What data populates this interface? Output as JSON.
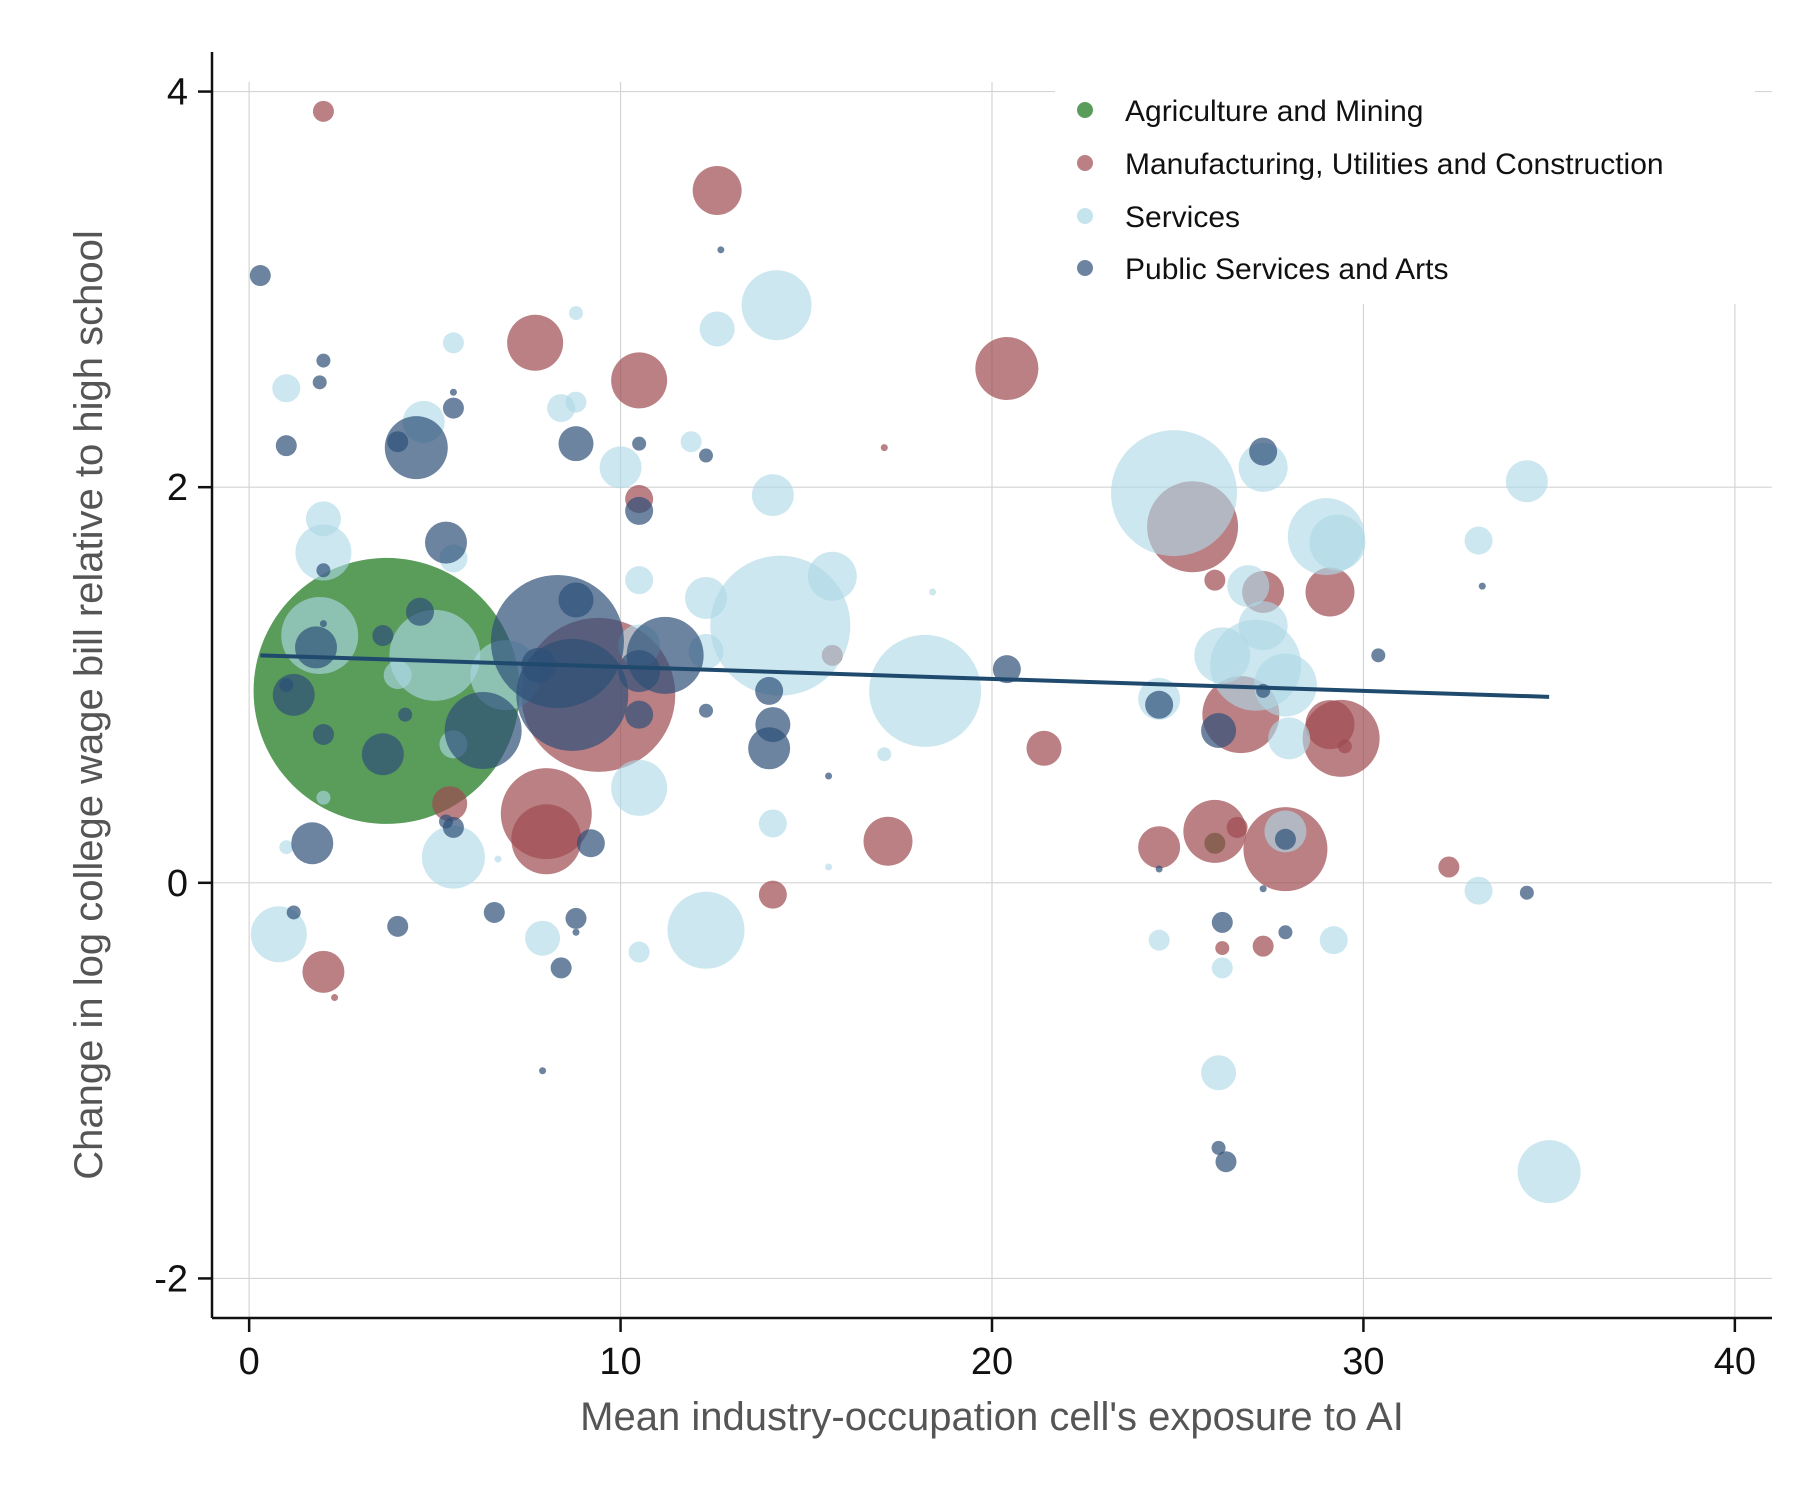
{
  "chart_data": {
    "type": "scatter",
    "xlabel": "Mean industry-occupation cell's exposure to AI",
    "ylabel": "Change in log college wage bill relative to high school",
    "xlim": [
      -1,
      41
    ],
    "ylim": [
      -2.2,
      4.2
    ],
    "xticks": [
      0,
      10,
      20,
      30,
      40
    ],
    "yticks": [
      -2,
      0,
      2,
      4
    ],
    "x_tick_labels": [
      "0",
      "10",
      "20",
      "30",
      "40"
    ],
    "y_tick_labels": [
      "-2",
      "0",
      "2",
      "4"
    ],
    "grid": true,
    "legend_position": "top-right",
    "colors": {
      "Agriculture and Mining": "#3d8b3d",
      "Manufacturing, Utilities and Construction": "#9e4a50",
      "Services": "#add8e6",
      "Public Services and Arts": "#2e5077",
      "fit_line": "#1f4a6e"
    },
    "series": [
      {
        "name": "Agriculture and Mining",
        "points": [
          [
            3.7,
            0.97,
            38
          ],
          [
            26.0,
            0.2,
            3
          ]
        ]
      },
      {
        "name": "Manufacturing, Utilities and Construction",
        "points": [
          [
            2.0,
            3.9,
            3
          ],
          [
            12.6,
            3.5,
            7
          ],
          [
            7.7,
            2.73,
            8
          ],
          [
            10.5,
            2.54,
            8
          ],
          [
            20.4,
            2.6,
            9
          ],
          [
            10.5,
            1.94,
            4
          ],
          [
            25.4,
            1.8,
            13
          ],
          [
            26.0,
            1.53,
            3
          ],
          [
            27.3,
            1.47,
            6
          ],
          [
            29.1,
            1.47,
            7
          ],
          [
            15.7,
            1.15,
            3
          ],
          [
            9.4,
            0.95,
            22
          ],
          [
            26.7,
            0.85,
            11
          ],
          [
            29.1,
            0.8,
            7
          ],
          [
            29.4,
            0.73,
            11
          ],
          [
            29.5,
            0.69,
            2
          ],
          [
            21.4,
            0.68,
            5
          ],
          [
            5.4,
            0.4,
            5
          ],
          [
            8.0,
            0.35,
            13
          ],
          [
            8.0,
            0.22,
            10
          ],
          [
            17.2,
            0.21,
            7
          ],
          [
            26.0,
            0.26,
            9
          ],
          [
            26.6,
            0.28,
            3
          ],
          [
            24.5,
            0.18,
            6
          ],
          [
            27.9,
            0.17,
            12
          ],
          [
            32.3,
            0.08,
            3
          ],
          [
            14.1,
            -0.06,
            4
          ],
          [
            26.2,
            -0.33,
            2
          ],
          [
            27.3,
            -0.32,
            3
          ],
          [
            2.0,
            -0.45,
            6
          ],
          [
            2.3,
            -0.58,
            1
          ],
          [
            17.1,
            2.2,
            1
          ]
        ]
      },
      {
        "name": "Services",
        "points": [
          [
            8.8,
            2.88,
            2
          ],
          [
            14.2,
            2.92,
            10
          ],
          [
            12.6,
            2.8,
            5
          ],
          [
            5.5,
            2.73,
            3
          ],
          [
            1.0,
            2.5,
            4
          ],
          [
            8.4,
            2.4,
            4
          ],
          [
            8.8,
            2.43,
            3
          ],
          [
            4.7,
            2.33,
            6
          ],
          [
            11.9,
            2.23,
            3
          ],
          [
            10.0,
            2.1,
            6
          ],
          [
            14.1,
            1.96,
            6
          ],
          [
            2.0,
            1.84,
            5
          ],
          [
            24.9,
            1.97,
            18
          ],
          [
            27.3,
            2.1,
            7
          ],
          [
            29.0,
            1.75,
            11
          ],
          [
            29.3,
            1.72,
            8
          ],
          [
            33.1,
            1.73,
            4
          ],
          [
            34.4,
            2.03,
            6
          ],
          [
            2.0,
            1.67,
            8
          ],
          [
            5.5,
            1.64,
            4
          ],
          [
            10.5,
            1.53,
            4
          ],
          [
            12.3,
            1.44,
            6
          ],
          [
            15.7,
            1.55,
            7
          ],
          [
            14.3,
            1.3,
            20
          ],
          [
            1.9,
            1.25,
            11
          ],
          [
            5.0,
            1.15,
            13
          ],
          [
            6.9,
            1.05,
            10
          ],
          [
            10.5,
            1.2,
            6
          ],
          [
            12.3,
            1.17,
            5
          ],
          [
            18.2,
            0.97,
            16
          ],
          [
            26.9,
            1.5,
            6
          ],
          [
            27.3,
            1.3,
            7
          ],
          [
            26.2,
            1.15,
            8
          ],
          [
            27.1,
            1.1,
            13
          ],
          [
            27.9,
            1.0,
            9
          ],
          [
            24.5,
            0.93,
            6
          ],
          [
            28.0,
            0.73,
            6
          ],
          [
            5.5,
            0.7,
            4
          ],
          [
            17.1,
            0.65,
            2
          ],
          [
            10.5,
            0.48,
            8
          ],
          [
            2.0,
            0.43,
            2
          ],
          [
            14.1,
            0.3,
            4
          ],
          [
            1.0,
            0.18,
            2
          ],
          [
            5.5,
            0.13,
            9
          ],
          [
            6.7,
            0.12,
            1
          ],
          [
            15.6,
            0.08,
            1
          ],
          [
            18.4,
            1.47,
            1
          ],
          [
            27.9,
            0.26,
            6
          ],
          [
            33.1,
            -0.04,
            4
          ],
          [
            0.8,
            -0.26,
            8
          ],
          [
            12.3,
            -0.24,
            11
          ],
          [
            7.9,
            -0.28,
            5
          ],
          [
            10.5,
            -0.35,
            3
          ],
          [
            24.5,
            -0.29,
            3
          ],
          [
            29.2,
            -0.29,
            4
          ],
          [
            26.2,
            -0.43,
            3
          ],
          [
            26.1,
            -0.96,
            5
          ],
          [
            35.0,
            -1.46,
            9
          ],
          [
            4.0,
            1.05,
            4
          ]
        ]
      },
      {
        "name": "Public Services and Arts",
        "points": [
          [
            0.3,
            3.07,
            3
          ],
          [
            12.7,
            3.2,
            1
          ],
          [
            2.0,
            2.64,
            2
          ],
          [
            1.9,
            2.53,
            2
          ],
          [
            5.5,
            2.48,
            1
          ],
          [
            5.5,
            2.4,
            3
          ],
          [
            1.0,
            2.21,
            3
          ],
          [
            4.0,
            2.23,
            3
          ],
          [
            4.5,
            2.2,
            9
          ],
          [
            8.8,
            2.22,
            5
          ],
          [
            10.5,
            2.22,
            2
          ],
          [
            12.3,
            2.16,
            2
          ],
          [
            27.3,
            2.18,
            4
          ],
          [
            10.5,
            1.88,
            4
          ],
          [
            5.3,
            1.72,
            6
          ],
          [
            2.0,
            1.58,
            2
          ],
          [
            4.6,
            1.37,
            4
          ],
          [
            8.8,
            1.43,
            5
          ],
          [
            2.0,
            1.31,
            1
          ],
          [
            3.6,
            1.25,
            3
          ],
          [
            1.8,
            1.19,
            6
          ],
          [
            8.3,
            1.22,
            19
          ],
          [
            11.2,
            1.15,
            11
          ],
          [
            7.8,
            1.1,
            5
          ],
          [
            8.7,
            0.95,
            16
          ],
          [
            10.5,
            1.07,
            6
          ],
          [
            1.0,
            1.0,
            2
          ],
          [
            1.2,
            0.95,
            6
          ],
          [
            4.2,
            0.85,
            2
          ],
          [
            6.3,
            0.77,
            11
          ],
          [
            10.5,
            0.85,
            4
          ],
          [
            12.3,
            0.87,
            2
          ],
          [
            14.0,
            0.97,
            4
          ],
          [
            14.1,
            0.8,
            5
          ],
          [
            14.0,
            0.68,
            6
          ],
          [
            15.6,
            0.54,
            1
          ],
          [
            20.4,
            1.08,
            4
          ],
          [
            30.4,
            1.15,
            2
          ],
          [
            33.2,
            1.5,
            1
          ],
          [
            27.3,
            0.97,
            2
          ],
          [
            24.5,
            0.9,
            4
          ],
          [
            26.1,
            0.77,
            5
          ],
          [
            2.0,
            0.75,
            3
          ],
          [
            3.6,
            0.65,
            6
          ],
          [
            5.3,
            0.31,
            2
          ],
          [
            5.5,
            0.28,
            3
          ],
          [
            1.7,
            0.2,
            6
          ],
          [
            9.2,
            0.2,
            4
          ],
          [
            27.9,
            0.22,
            3
          ],
          [
            24.5,
            0.07,
            1
          ],
          [
            27.3,
            -0.03,
            1
          ],
          [
            6.6,
            -0.15,
            3
          ],
          [
            1.2,
            -0.15,
            2
          ],
          [
            4.0,
            -0.22,
            3
          ],
          [
            8.8,
            -0.18,
            3
          ],
          [
            8.8,
            -0.25,
            1
          ],
          [
            26.2,
            -0.2,
            3
          ],
          [
            27.9,
            -0.25,
            2
          ],
          [
            34.4,
            -0.05,
            2
          ],
          [
            8.4,
            -0.43,
            3
          ],
          [
            7.9,
            -0.95,
            1
          ],
          [
            26.1,
            -1.34,
            2
          ],
          [
            26.3,
            -1.41,
            3
          ]
        ]
      }
    ],
    "fit_line": {
      "x": [
        0.3,
        35.0
      ],
      "y": [
        1.15,
        0.94
      ]
    }
  }
}
